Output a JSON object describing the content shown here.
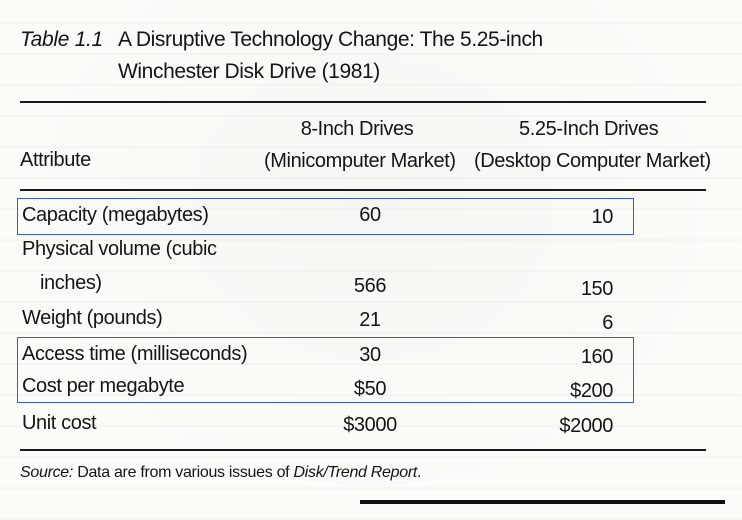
{
  "caption": {
    "label": "Table 1.1",
    "title_line1": "A Disruptive Technology Change: The 5.25-inch",
    "title_line2": "Winchester Disk Drive (1981)"
  },
  "columns": {
    "attribute": "Attribute",
    "col1_line1": "8-Inch Drives",
    "col1_line2": "(Minicomputer Market)",
    "col2_line1": "5.25-Inch Drives",
    "col2_line2": "(Desktop Computer Market)"
  },
  "rows": [
    {
      "attr": "Capacity (megabytes)",
      "v8": "60",
      "v525": "10"
    },
    {
      "attr_line1": "Physical volume (cubic",
      "attr_line2": "inches)",
      "v8": "566",
      "v525": "150"
    },
    {
      "attr": "Weight (pounds)",
      "v8": "21",
      "v525": "6"
    },
    {
      "attr": "Access time (milliseconds)",
      "v8": "30",
      "v525": "160"
    },
    {
      "attr": "Cost per megabyte",
      "v8": "$50",
      "v525": "$200"
    },
    {
      "attr": "Unit cost",
      "v8": "$3000",
      "v525": "$2000"
    }
  ],
  "source": {
    "label": "Source:",
    "text": "Data are from various issues of",
    "publication": "Disk/Trend Report",
    "end": "."
  },
  "highlight_color": "#3b59c9"
}
